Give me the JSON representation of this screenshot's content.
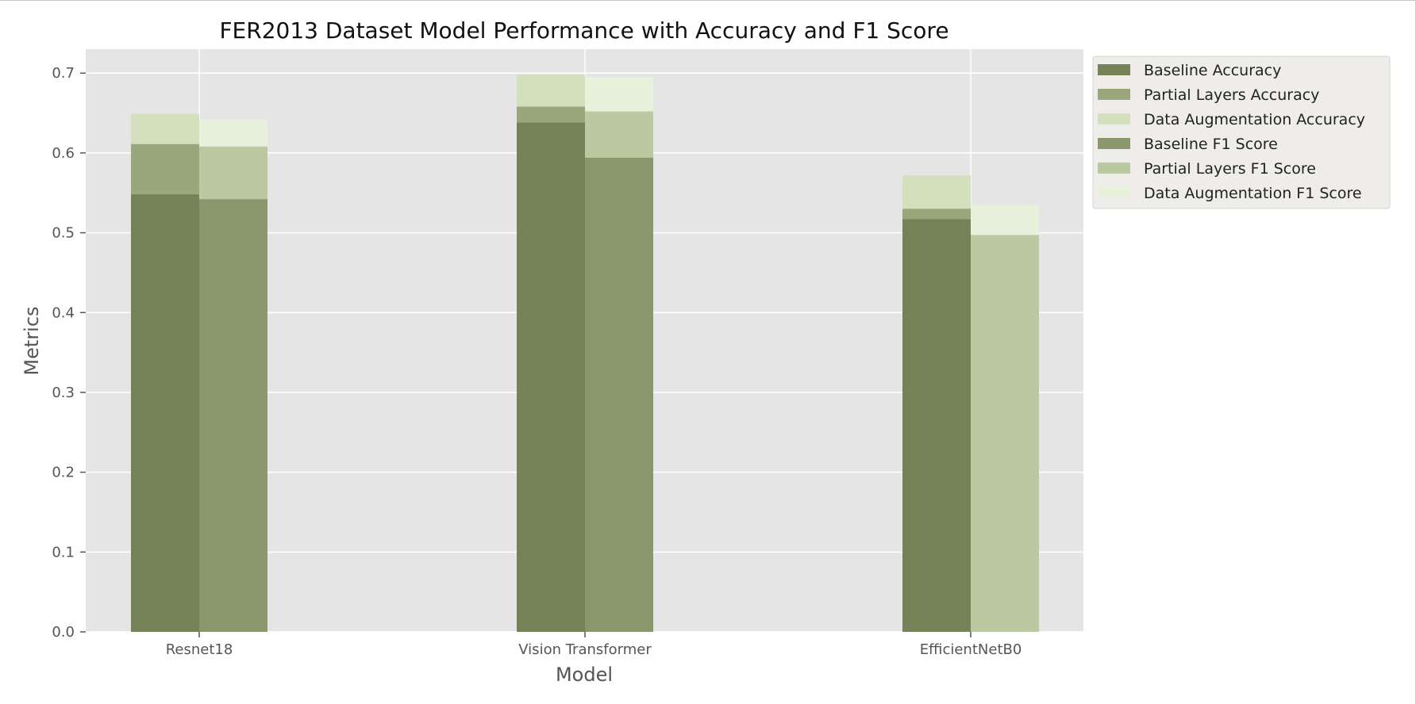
{
  "chart_data": {
    "type": "bar",
    "title": "FER2013 Dataset Model Performance with Accuracy and F1 Score",
    "xlabel": "Model",
    "ylabel": "Metrics",
    "categories": [
      "Resnet18",
      "Vision Transformer",
      "EfficientNetB0"
    ],
    "ylim": [
      0,
      0.73
    ],
    "yticks": [
      "0.0",
      "0.1",
      "0.2",
      "0.3",
      "0.4",
      "0.5",
      "0.6",
      "0.7"
    ],
    "grid": true,
    "legend_position": "outside-right-top",
    "groups": [
      {
        "metric": "Accuracy",
        "series": [
          {
            "name": "Baseline Accuracy",
            "values": [
              0.548,
              0.638,
              0.517
            ],
            "color": "#758156"
          },
          {
            "name": "Partial Layers Accuracy",
            "values": [
              0.611,
              0.658,
              0.53
            ],
            "color": "#9aa77c"
          },
          {
            "name": "Data Augmentation Accuracy",
            "values": [
              0.649,
              0.698,
              0.572
            ],
            "color": "#d2e0bd"
          }
        ]
      },
      {
        "metric": "F1 Score",
        "series": [
          {
            "name": "Baseline F1 Score",
            "values": [
              0.542,
              0.594,
              0.497
            ],
            "color": "#8a966c"
          },
          {
            "name": "Partial Layers F1 Score",
            "values": [
              0.608,
              0.652,
              0.497
            ],
            "color": "#bac9a0"
          },
          {
            "name": "Data Augmentation F1 Score",
            "values": [
              0.642,
              0.695,
              0.535
            ],
            "color": "#e8f1dc"
          }
        ]
      }
    ]
  }
}
